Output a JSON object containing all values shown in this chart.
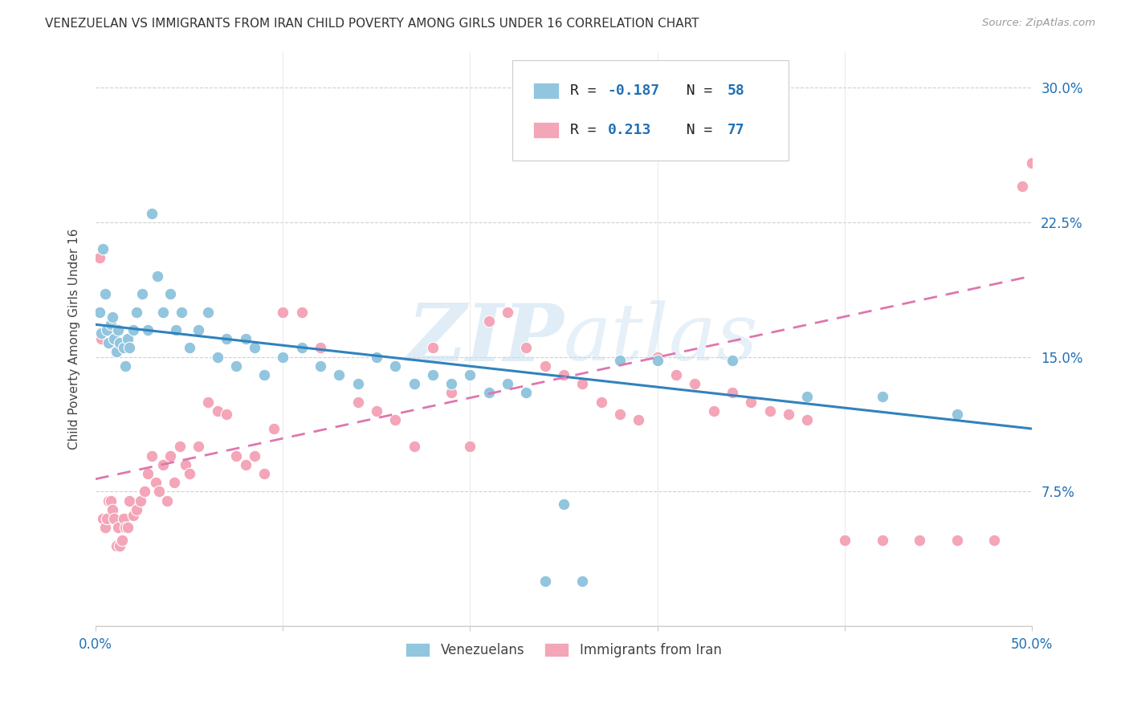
{
  "title": "VENEZUELAN VS IMMIGRANTS FROM IRAN CHILD POVERTY AMONG GIRLS UNDER 16 CORRELATION CHART",
  "source": "Source: ZipAtlas.com",
  "ylabel": "Child Poverty Among Girls Under 16",
  "xlim": [
    0.0,
    0.5
  ],
  "ylim": [
    0.0,
    0.32
  ],
  "ytick_vals": [
    0.075,
    0.15,
    0.225,
    0.3
  ],
  "ytick_labels": [
    "7.5%",
    "15.0%",
    "22.5%",
    "30.0%"
  ],
  "legend_label1": "Venezuelans",
  "legend_label2": "Immigrants from Iran",
  "R1": -0.187,
  "N1": 58,
  "R2": 0.213,
  "N2": 77,
  "color_blue": "#92c5de",
  "color_pink": "#f4a5b8",
  "line_color_blue": "#3182bd",
  "line_color_pink": "#de77ae",
  "background_color": "#ffffff",
  "watermark_zip": "ZIP",
  "watermark_atlas": "atlas",
  "title_fontsize": 11,
  "tick_fontsize": 12,
  "label_fontsize": 11
}
